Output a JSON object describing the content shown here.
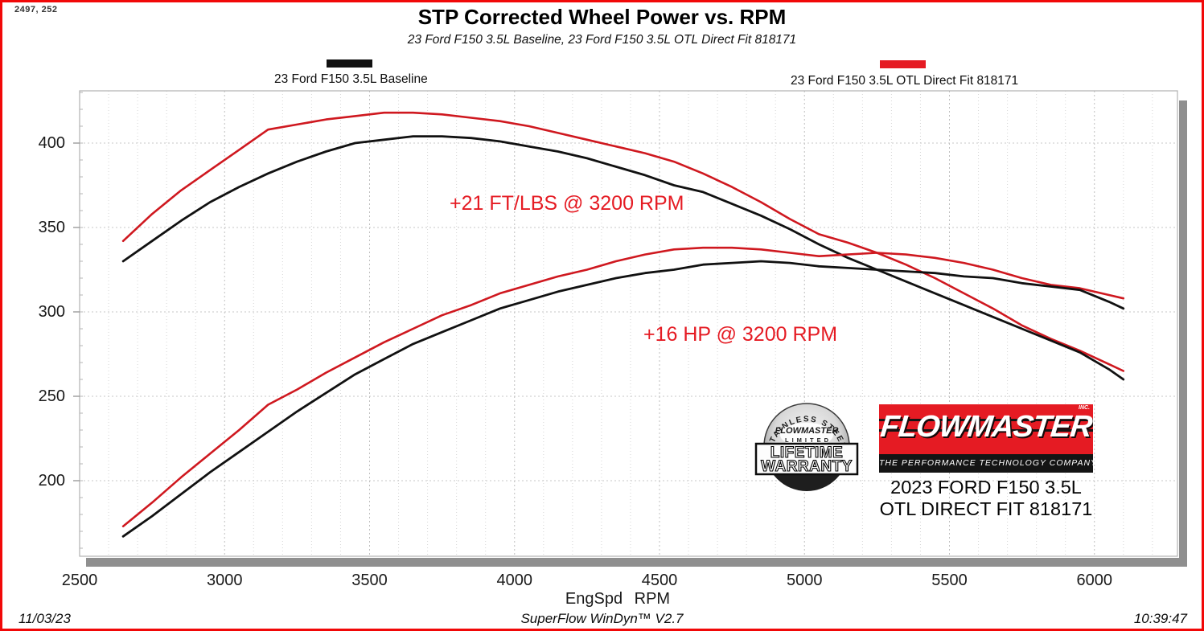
{
  "header": {
    "cursor_readout": "2497, 252",
    "title": "STP Corrected Wheel Power vs. RPM",
    "subtitle": "23 Ford F150 3.5L Baseline, 23 Ford F150 3.5L OTL Direct Fit 818171"
  },
  "legend": {
    "baseline": {
      "label": "23 Ford F150 3.5L Baseline",
      "color": "#111111"
    },
    "otl": {
      "label": "23 Ford F150 3.5L OTL Direct Fit 818171",
      "color": "#e51b23"
    }
  },
  "annotations": {
    "torque": {
      "text": "+21 FT/LBS @ 3200 RPM"
    },
    "power": {
      "text": "+16 HP @ 3200 RPM"
    }
  },
  "axis": {
    "x_label": "EngSpd RPM"
  },
  "footer": {
    "date": "11/03/23",
    "app": "SuperFlow WinDyn™ V2.7",
    "time": "10:39:47"
  },
  "branding": {
    "badge": {
      "arc_text": "STAINLESS STEEL",
      "script": "FLOWMASTER",
      "limited": "LIMITED",
      "line1": "LIFETIME",
      "line2": "WARRANTY"
    },
    "logo": {
      "name": "FLOWMASTER",
      "inc": "INC.",
      "tagline": "THE PERFORMANCE TECHNOLOGY COMPANY"
    },
    "vehicle": {
      "line1": "2023 FORD F150 3.5L",
      "line2": "OTL DIRECT FIT 818171"
    }
  },
  "colors": {
    "baseline_line": "#111111",
    "otl_line": "#cf181f",
    "accent_red": "#e51b23",
    "shadow_gray": "#8f8f8f",
    "frame_border": "#f10808"
  },
  "chart_data": {
    "type": "line",
    "title": "STP Corrected Wheel Power vs. RPM",
    "subtitle": "23 Ford F150 3.5L Baseline, 23 Ford F150 3.5L OTL Direct Fit 818171",
    "xlabel": "EngSpd RPM",
    "ylabel": "",
    "xlim": [
      2500,
      6285
    ],
    "ylim": [
      155,
      431
    ],
    "x_ticks": [
      2500,
      3000,
      3500,
      4000,
      4500,
      5000,
      5500,
      6000
    ],
    "y_ticks": [
      400,
      350,
      300,
      250,
      200
    ],
    "grid": true,
    "legend_position": "top",
    "x": [
      2650,
      2750,
      2850,
      2950,
      3050,
      3150,
      3250,
      3350,
      3450,
      3550,
      3650,
      3750,
      3850,
      3950,
      4050,
      4150,
      4250,
      4350,
      4450,
      4550,
      4650,
      4750,
      4850,
      4950,
      5050,
      5150,
      5250,
      5350,
      5450,
      5550,
      5650,
      5750,
      5850,
      5950,
      6050,
      6100
    ],
    "series": [
      {
        "name": "23 Ford F150 3.5L OTL Direct Fit 818171 - Torque (ft-lbs)",
        "color": "#cf181f",
        "values": [
          342,
          358,
          372,
          384,
          396,
          408,
          411,
          414,
          416,
          418,
          418,
          417,
          415,
          413,
          410,
          406,
          402,
          398,
          394,
          389,
          382,
          374,
          365,
          355,
          346,
          341,
          335,
          328,
          320,
          311,
          302,
          292,
          284,
          277,
          269,
          265
        ]
      },
      {
        "name": "23 Ford F150 3.5L Baseline - Torque (ft-lbs)",
        "color": "#111111",
        "values": [
          330,
          342,
          354,
          365,
          374,
          382,
          389,
          395,
          400,
          402,
          404,
          404,
          403,
          401,
          398,
          395,
          391,
          386,
          381,
          375,
          371,
          364,
          357,
          349,
          340,
          332,
          325,
          318,
          311,
          304,
          297,
          290,
          283,
          276,
          266,
          260
        ]
      },
      {
        "name": "23 Ford F150 3.5L OTL Direct Fit 818171 - Power (HP)",
        "color": "#cf181f",
        "values": [
          173,
          187,
          202,
          216,
          230,
          245,
          254,
          264,
          273,
          282,
          290,
          298,
          304,
          311,
          316,
          321,
          325,
          330,
          334,
          337,
          338,
          338,
          337,
          335,
          333,
          334,
          335,
          334,
          332,
          329,
          325,
          320,
          316,
          314,
          310,
          308
        ]
      },
      {
        "name": "23 Ford F150 3.5L Baseline - Power (HP)",
        "color": "#111111",
        "values": [
          167,
          179,
          192,
          205,
          217,
          229,
          241,
          252,
          263,
          272,
          281,
          288,
          295,
          302,
          307,
          312,
          316,
          320,
          323,
          325,
          328,
          329,
          330,
          329,
          327,
          326,
          325,
          324,
          323,
          321,
          320,
          317,
          315,
          313,
          306,
          302
        ]
      }
    ],
    "annotations": [
      {
        "text": "+21 FT/LBS @ 3200 RPM",
        "color": "#e51b23"
      },
      {
        "text": "+16 HP @ 3200 RPM",
        "color": "#e51b23"
      }
    ]
  }
}
